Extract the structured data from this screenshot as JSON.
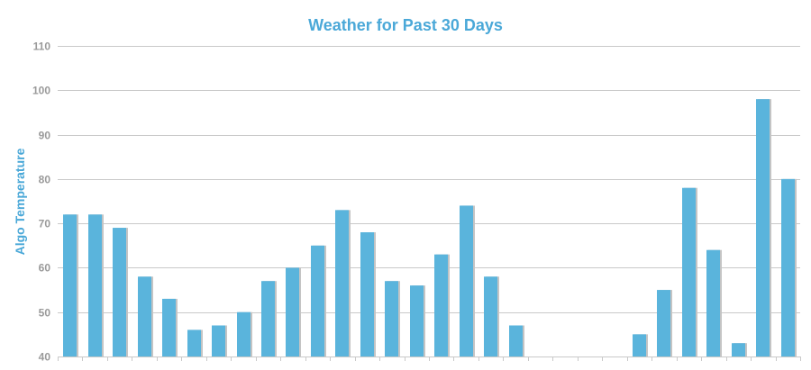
{
  "chart_data": {
    "type": "bar",
    "title": "Weather for Past 30 Days",
    "xlabel": "",
    "ylabel": "Algo Temperature",
    "ylim": [
      40,
      110
    ],
    "yticks": [
      40,
      50,
      60,
      70,
      80,
      90,
      100,
      110
    ],
    "grid": true,
    "legend": "none",
    "bar_color": "#5ab4dc",
    "bar_shadow_color": "#c4c4c4",
    "grid_color": "#c9c9c9",
    "values": [
      72,
      72,
      69,
      58,
      53,
      46,
      47,
      50,
      57,
      60,
      65,
      73,
      68,
      57,
      56,
      63,
      74,
      58,
      47,
      40,
      40,
      40,
      40,
      45,
      55,
      78,
      64,
      43,
      98,
      80
    ]
  }
}
